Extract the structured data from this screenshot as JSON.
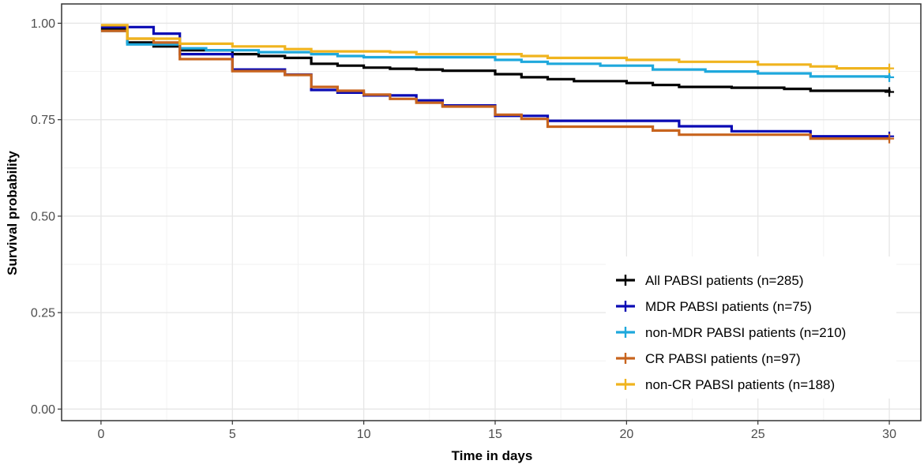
{
  "chart_data": {
    "type": "line",
    "step": true,
    "title": "",
    "xlabel": "Time in days",
    "ylabel": "Survival probability",
    "xlim": [
      -1.5,
      31.2
    ],
    "ylim": [
      -0.03,
      1.05
    ],
    "x_ticks": [
      0,
      5,
      10,
      15,
      20,
      25,
      30
    ],
    "x_tick_labels": [
      "0",
      "5",
      "10",
      "15",
      "20",
      "25",
      "30"
    ],
    "y_ticks": [
      0,
      0.25,
      0.5,
      0.75,
      1.0
    ],
    "y_tick_labels": [
      "0.00",
      "0.25",
      "0.50",
      "0.75",
      "1.00"
    ],
    "grid": true,
    "legend_position": "bottom-right",
    "series": [
      {
        "name": "All PABSI patients (n=285)",
        "color": "#000000",
        "points": [
          [
            0,
            0.985
          ],
          [
            1,
            0.95
          ],
          [
            2,
            0.94
          ],
          [
            3,
            0.93
          ],
          [
            5,
            0.92
          ],
          [
            6,
            0.915
          ],
          [
            7,
            0.91
          ],
          [
            8,
            0.895
          ],
          [
            9,
            0.89
          ],
          [
            10,
            0.885
          ],
          [
            11,
            0.882
          ],
          [
            12,
            0.88
          ],
          [
            13,
            0.877
          ],
          [
            15,
            0.868
          ],
          [
            16,
            0.86
          ],
          [
            17,
            0.855
          ],
          [
            18,
            0.85
          ],
          [
            19,
            0.85
          ],
          [
            20,
            0.845
          ],
          [
            21,
            0.84
          ],
          [
            22,
            0.835
          ],
          [
            24,
            0.833
          ],
          [
            26,
            0.83
          ],
          [
            27,
            0.825
          ],
          [
            30,
            0.822
          ]
        ]
      },
      {
        "name": "MDR PABSI patients (n=75)",
        "color": "#0a0ab4",
        "points": [
          [
            0,
            0.99
          ],
          [
            1,
            0.99
          ],
          [
            2,
            0.973
          ],
          [
            3,
            0.92
          ],
          [
            5,
            0.88
          ],
          [
            7,
            0.867
          ],
          [
            8,
            0.827
          ],
          [
            9,
            0.82
          ],
          [
            10,
            0.813
          ],
          [
            11,
            0.813
          ],
          [
            12,
            0.8
          ],
          [
            13,
            0.787
          ],
          [
            15,
            0.76
          ],
          [
            16,
            0.76
          ],
          [
            17,
            0.747
          ],
          [
            18,
            0.747
          ],
          [
            20,
            0.747
          ],
          [
            22,
            0.733
          ],
          [
            24,
            0.72
          ],
          [
            27,
            0.707
          ],
          [
            30,
            0.707
          ]
        ]
      },
      {
        "name": "non-MDR PABSI patients (n=210)",
        "color": "#1ea8dc",
        "points": [
          [
            0,
            0.98
          ],
          [
            1,
            0.945
          ],
          [
            3,
            0.935
          ],
          [
            4,
            0.93
          ],
          [
            6,
            0.925
          ],
          [
            8,
            0.92
          ],
          [
            9,
            0.915
          ],
          [
            10,
            0.912
          ],
          [
            15,
            0.905
          ],
          [
            16,
            0.9
          ],
          [
            17,
            0.895
          ],
          [
            19,
            0.89
          ],
          [
            21,
            0.88
          ],
          [
            23,
            0.875
          ],
          [
            25,
            0.87
          ],
          [
            27,
            0.862
          ],
          [
            30,
            0.86
          ]
        ]
      },
      {
        "name": "CR PABSI patients (n=97)",
        "color": "#c8641e",
        "points": [
          [
            0,
            0.98
          ],
          [
            1,
            0.96
          ],
          [
            2,
            0.95
          ],
          [
            3,
            0.907
          ],
          [
            5,
            0.876
          ],
          [
            7,
            0.866
          ],
          [
            8,
            0.835
          ],
          [
            9,
            0.825
          ],
          [
            10,
            0.815
          ],
          [
            11,
            0.804
          ],
          [
            12,
            0.794
          ],
          [
            13,
            0.784
          ],
          [
            15,
            0.763
          ],
          [
            16,
            0.752
          ],
          [
            17,
            0.732
          ],
          [
            20,
            0.732
          ],
          [
            21,
            0.722
          ],
          [
            22,
            0.711
          ],
          [
            26,
            0.711
          ],
          [
            27,
            0.701
          ],
          [
            30,
            0.701
          ]
        ]
      },
      {
        "name": "non-CR PABSI patients (n=188)",
        "color": "#f0b41e",
        "points": [
          [
            0,
            0.995
          ],
          [
            1,
            0.96
          ],
          [
            3,
            0.947
          ],
          [
            5,
            0.94
          ],
          [
            7,
            0.933
          ],
          [
            8,
            0.927
          ],
          [
            11,
            0.925
          ],
          [
            12,
            0.92
          ],
          [
            15,
            0.92
          ],
          [
            16,
            0.915
          ],
          [
            17,
            0.91
          ],
          [
            20,
            0.905
          ],
          [
            22,
            0.9
          ],
          [
            25,
            0.893
          ],
          [
            27,
            0.888
          ],
          [
            28,
            0.883
          ],
          [
            30,
            0.883
          ]
        ]
      }
    ]
  }
}
